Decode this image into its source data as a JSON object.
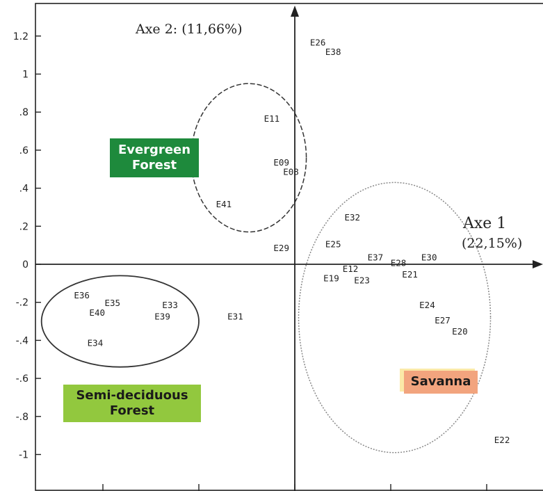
{
  "chart_data": {
    "type": "scatter",
    "x_axis_label": [
      "Axe 1",
      "(22,15%)"
    ],
    "y_axis_label": "Axe 2: (11,66%)",
    "xlim": [
      -1.15,
      1.3
    ],
    "ylim": [
      -1.15,
      1.35
    ],
    "yticks": [
      {
        "value": 1.2,
        "label": "1.2"
      },
      {
        "value": 1.0,
        "label": "1"
      },
      {
        "value": 0.8,
        "label": ".8"
      },
      {
        "value": 0.6,
        "label": ".6"
      },
      {
        "value": 0.4,
        "label": ".4"
      },
      {
        "value": 0.2,
        "label": ".2"
      },
      {
        "value": 0.0,
        "label": "0"
      },
      {
        "value": -0.2,
        "label": "-.2"
      },
      {
        "value": -0.4,
        "label": "-.4"
      },
      {
        "value": -0.6,
        "label": "-.6"
      },
      {
        "value": -0.8,
        "label": "-.8"
      },
      {
        "value": -1.0,
        "label": "-1"
      }
    ],
    "xticks": [
      -1.0,
      -0.5,
      0.0,
      0.5,
      1.0
    ],
    "points": [
      {
        "label": "E26",
        "x": 0.12,
        "y": 1.15
      },
      {
        "label": "E38",
        "x": 0.2,
        "y": 1.1
      },
      {
        "label": "E11",
        "x": -0.12,
        "y": 0.75
      },
      {
        "label": "E09",
        "x": -0.07,
        "y": 0.52
      },
      {
        "label": "E08",
        "x": -0.02,
        "y": 0.47
      },
      {
        "label": "E41",
        "x": -0.37,
        "y": 0.3
      },
      {
        "label": "E32",
        "x": 0.3,
        "y": 0.23
      },
      {
        "label": "E29",
        "x": -0.07,
        "y": 0.07
      },
      {
        "label": "E25",
        "x": 0.2,
        "y": 0.09
      },
      {
        "label": "E37",
        "x": 0.42,
        "y": 0.02
      },
      {
        "label": "E28",
        "x": 0.54,
        "y": -0.01
      },
      {
        "label": "E30",
        "x": 0.7,
        "y": 0.02
      },
      {
        "label": "E12",
        "x": 0.29,
        "y": -0.04
      },
      {
        "label": "E19",
        "x": 0.19,
        "y": -0.09
      },
      {
        "label": "E23",
        "x": 0.35,
        "y": -0.1
      },
      {
        "label": "E21",
        "x": 0.6,
        "y": -0.07
      },
      {
        "label": "E36",
        "x": -1.11,
        "y": -0.18
      },
      {
        "label": "E35",
        "x": -0.95,
        "y": -0.22
      },
      {
        "label": "E33",
        "x": -0.65,
        "y": -0.23
      },
      {
        "label": "E40",
        "x": -1.03,
        "y": -0.27
      },
      {
        "label": "E39",
        "x": -0.69,
        "y": -0.29
      },
      {
        "label": "E31",
        "x": -0.31,
        "y": -0.29
      },
      {
        "label": "E24",
        "x": 0.69,
        "y": -0.23
      },
      {
        "label": "E27",
        "x": 0.77,
        "y": -0.31
      },
      {
        "label": "E20",
        "x": 0.86,
        "y": -0.37
      },
      {
        "label": "E34",
        "x": -1.04,
        "y": -0.43
      },
      {
        "label": "E22",
        "x": 1.08,
        "y": -0.94
      }
    ],
    "groups": [
      {
        "label": "Evergreen Forest",
        "color": "#1e8a3c",
        "cx": -0.24,
        "cy": 0.56,
        "rx": 0.3,
        "ry": 0.39,
        "style": "dashed"
      },
      {
        "label": "Semi-deciduous Forest",
        "color": "#92c83e",
        "cx": -0.91,
        "cy": -0.3,
        "rx": 0.41,
        "ry": 0.24,
        "style": "solid"
      },
      {
        "label": "Savanna",
        "color": "#f2a47e",
        "cx": 0.52,
        "cy": -0.28,
        "rx": 0.5,
        "ry": 0.71,
        "style": "dotted"
      }
    ]
  },
  "zones": {
    "evergreen": {
      "line1": "Evergreen",
      "line2": "Forest",
      "color": "#1e8a3c"
    },
    "semideciduous": {
      "line1": "Semi-deciduous",
      "line2": "Forest",
      "color": "#92c83e"
    },
    "savanna": {
      "text": "Savanna",
      "color": "#f2a47e"
    }
  }
}
